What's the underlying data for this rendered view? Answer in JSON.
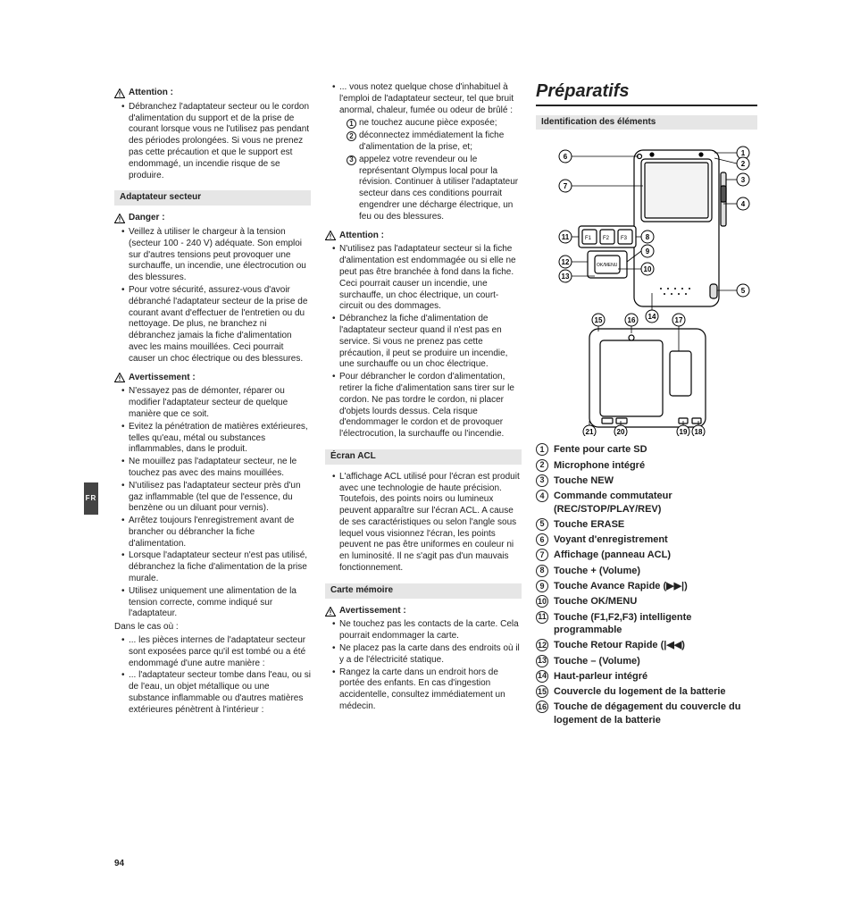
{
  "side_tab": "FR",
  "page_number": "94",
  "col1": {
    "warn1_label": "Attention :",
    "warn1_items": [
      "Débranchez l'adaptateur secteur ou le cordon d'alimentation du support et de la prise de courant lorsque vous ne l'utilisez pas pendant des périodes prolongées. Si vous ne prenez pas cette précaution et que le support est endommagé, un incendie risque de se produire."
    ],
    "sub1": "Adaptateur secteur",
    "danger_label": "Danger :",
    "danger_items": [
      "Veillez à utiliser le chargeur à la tension (secteur 100 - 240 V) adéquate. Son emploi sur d'autres tensions peut provoquer une surchauffe, un incendie, une électrocution ou des blessures.",
      "Pour votre sécurité, assurez-vous d'avoir débranché l'adaptateur secteur de la prise de courant avant d'effectuer de l'entretien ou du nettoyage. De plus, ne branchez ni débranchez jamais la fiche d'alimentation avec les mains mouillées. Ceci pourrait causer un choc électrique ou des blessures."
    ],
    "avert_label": "Avertissement :",
    "avert_items": [
      "N'essayez pas de démonter, réparer ou modifier l'adaptateur secteur de quelque manière que ce soit.",
      "Evitez la pénétration de matières extérieures, telles qu'eau, métal ou substances inflammables, dans le produit.",
      "Ne mouillez pas l'adaptateur secteur, ne le touchez pas avec des mains mouillées.",
      "N'utilisez pas l'adaptateur secteur près d'un gaz inflammable (tel que de l'essence, du benzène ou un diluant pour vernis).",
      "Arrêtez toujours l'enregistrement avant de brancher ou débrancher la fiche d'alimentation.",
      "Lorsque l'adaptateur secteur n'est pas utilisé, débranchez la fiche d'alimentation de la prise murale.",
      "Utilisez uniquement une alimentation de la tension correcte, comme indiqué sur l'adaptateur."
    ],
    "in_case": "Dans le cas où :",
    "in_case_items": [
      "... les pièces internes de l'adaptateur secteur sont exposées parce qu'il est tombé ou a été endommagé d'une autre manière :",
      "... l'adaptateur secteur tombe dans l'eau, ou si de l'eau, un objet métallique ou une substance inflammable ou d'autres matières extérieures pénètrent à l'intérieur :"
    ]
  },
  "col2": {
    "cont_intro": "... vous notez quelque chose d'inhabituel à l'emploi de l'adaptateur secteur, tel que bruit anormal, chaleur, fumée ou odeur de brûlé :",
    "cont_num": [
      "ne touchez aucune pièce exposée;",
      "déconnectez immédiatement la fiche d'alimentation de la prise, et;",
      "appelez votre revendeur ou le représentant Olympus local pour la révision. Continuer à utiliser l'adaptateur secteur dans ces conditions pourrait engendrer une décharge électrique, un feu ou des blessures."
    ],
    "att_label": "Attention :",
    "att_items": [
      "N'utilisez pas l'adaptateur secteur si la fiche d'alimentation est endommagée ou si elle ne peut pas être branchée à fond dans la fiche. Ceci pourrait causer un incendie, une surchauffe, un choc électrique, un court-circuit ou des dommages.",
      "Débranchez la fiche d'alimentation de l'adaptateur secteur quand il n'est pas en service. Si vous ne prenez pas cette précaution, il peut se produire un incendie, une surchauffe ou un choc électrique.",
      "Pour débrancher le cordon d'alimentation, retirer la fiche d'alimentation sans tirer sur le cordon. Ne pas tordre le cordon, ni placer d'objets lourds dessus. Cela risque d'endommager le cordon et de provoquer l'électrocution, la surchauffe ou l'incendie."
    ],
    "sub2": "Écran ACL",
    "ecran_items": [
      "L'affichage ACL utilisé pour l'écran est produit avec une technologie de haute précision. Toutefois, des points noirs ou lumineux peuvent apparaître sur l'écran ACL. A cause de ses caractéristiques ou selon l'angle sous lequel vous visionnez l'écran, les points peuvent ne pas être uniformes en couleur ni en luminosité. Il ne s'agit pas d'un mauvais fonctionnement."
    ],
    "sub3": "Carte mémoire",
    "avert2_label": "Avertissement :",
    "carte_items": [
      "Ne touchez pas les contacts de la carte. Cela pourrait endommager la carte.",
      "Ne placez pas la carte dans des endroits où il y a de l'électricité statique.",
      "Rangez la carte dans un endroit hors de portée des enfants. En cas d'ingestion accidentelle, consultez immédiatement un médecin."
    ]
  },
  "col3": {
    "title": "Préparatifs",
    "sub": "Identification des éléments",
    "callout_labels_top": [
      "6",
      "7",
      "11",
      "12",
      "13",
      "8",
      "9",
      "10",
      "14",
      "1",
      "2",
      "3",
      "4",
      "5"
    ],
    "callout_labels_bottom": [
      "15",
      "16",
      "17",
      "21",
      "20",
      "19",
      "18"
    ],
    "parts": [
      {
        "n": "1",
        "t": "Fente pour carte SD"
      },
      {
        "n": "2",
        "t": "Microphone intégré"
      },
      {
        "n": "3",
        "t": "Touche ",
        "cmd": "NEW"
      },
      {
        "n": "4",
        "t": "Commande commutateur (",
        "cmd": "REC/STOP/PLAY/REV",
        "t2": ")"
      },
      {
        "n": "5",
        "t": "Touche ",
        "cmd": "ERASE"
      },
      {
        "n": "6",
        "t": "Voyant d'enregistrement"
      },
      {
        "n": "7",
        "t": "Affichage (panneau ACL)"
      },
      {
        "n": "8",
        "t": "Touche + (Volume)"
      },
      {
        "n": "9",
        "t": "Touche Avance Rapide (▶▶|)"
      },
      {
        "n": "10",
        "t": "Touche ",
        "cmd": "OK/MENU"
      },
      {
        "n": "11",
        "t": "Touche (F1,F2,F3) intelligente programmable"
      },
      {
        "n": "12",
        "t": "Touche Retour Rapide (|◀◀)"
      },
      {
        "n": "13",
        "t": "Touche – (Volume)"
      },
      {
        "n": "14",
        "t": "Haut-parleur intégré"
      },
      {
        "n": "15",
        "t": "Couvercle du logement de la batterie"
      },
      {
        "n": "16",
        "t": "Touche de dégagement du couvercle du logement de la batterie"
      }
    ]
  }
}
